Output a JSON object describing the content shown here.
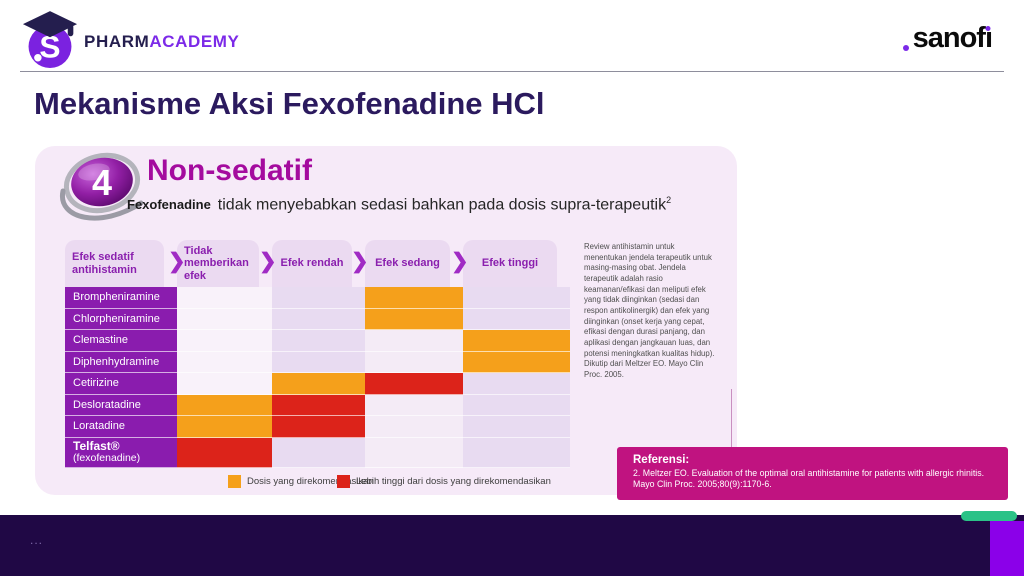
{
  "header": {
    "brand_pharm": "PHARM",
    "brand_academy": "ACADEMY",
    "sanofi_start": "sanof",
    "sanofi_i": "ı"
  },
  "title": "Mekanisme Aksi Fexofenadine HCl",
  "panel": {
    "badge_number": "4",
    "heading": "Non-sedatif",
    "subtitle_brand": "Fexofenadine",
    "subtitle_text": "tidak menyebabkan sedasi bahkan pada dosis supra-terapeutik",
    "subtitle_sup": "2"
  },
  "chart_data": {
    "type": "heatmap",
    "columns": [
      "Efek sedatif antihistamin",
      "Tidak memberikan efek",
      "Efek rendah",
      "Efek sedang",
      "Efek tinggi"
    ],
    "rows": [
      {
        "label": "Brompheniramine",
        "cells": [
          "",
          "",
          "orange",
          ""
        ]
      },
      {
        "label": "Chlorpheniramine",
        "cells": [
          "",
          "",
          "orange",
          ""
        ]
      },
      {
        "label": "Clemastine",
        "cells": [
          "",
          "",
          "",
          "orange"
        ]
      },
      {
        "label": "Diphenhydramine",
        "cells": [
          "",
          "",
          "",
          "orange"
        ]
      },
      {
        "label": "Cetirizine",
        "cells": [
          "",
          "orange",
          "red",
          ""
        ]
      },
      {
        "label": "Desloratadine",
        "cells": [
          "orange",
          "red",
          "",
          ""
        ]
      },
      {
        "label": "Loratadine",
        "cells": [
          "orange",
          "red",
          "",
          ""
        ]
      },
      {
        "label": "Telfast®",
        "label2": "(fexofenadine)",
        "bold": true,
        "cells": [
          "red",
          "",
          "",
          ""
        ]
      }
    ],
    "legend": [
      {
        "key": "orange",
        "color": "#F5A01B",
        "label": "Dosis yang direkomendasikan"
      },
      {
        "key": "red",
        "color": "#DC231A",
        "label": "Lebih tinggi dari dosis yang direkomendasikan"
      }
    ],
    "layout": {
      "legend_position": "bottom",
      "grid": false
    }
  },
  "side_note": {
    "text": "Review antihistamin untuk menentukan jendela terapeutik untuk masing-masing obat. Jendela terapeutik adalah rasio keamanan/efikasi dan meliputi efek yang tidak diinginkan (sedasi dan respon antikolinergik) dan efek yang diinginkan (onset kerja yang cepat, efikasi dengan durasi panjang, dan aplikasi dengan jangkauan luas, dan potensi meningkatkan kualitas hidup). Dikutip dari Meltzer EO. Mayo Clin Proc. 2005."
  },
  "reference": {
    "title": "Referensi:",
    "text": "2. Meltzer EO. Evaluation of the optimal oral antihistamine for patients with allergic rhinitis. Mayo Clin Proc. 2005;80(9):1170-6."
  },
  "footer": {
    "dots": "..."
  },
  "colors": {
    "accent_purple": "#7C2AE8",
    "heading_magenta": "#A40B9E",
    "cell_orange": "#F5A01B",
    "cell_red": "#DC231A",
    "label_purple": "#8A1CAE",
    "reference_magenta": "#C01380",
    "footer_bar": "#200845",
    "footer_stripe": "#8B00E9",
    "footer_pill_green": "#2BC287"
  }
}
